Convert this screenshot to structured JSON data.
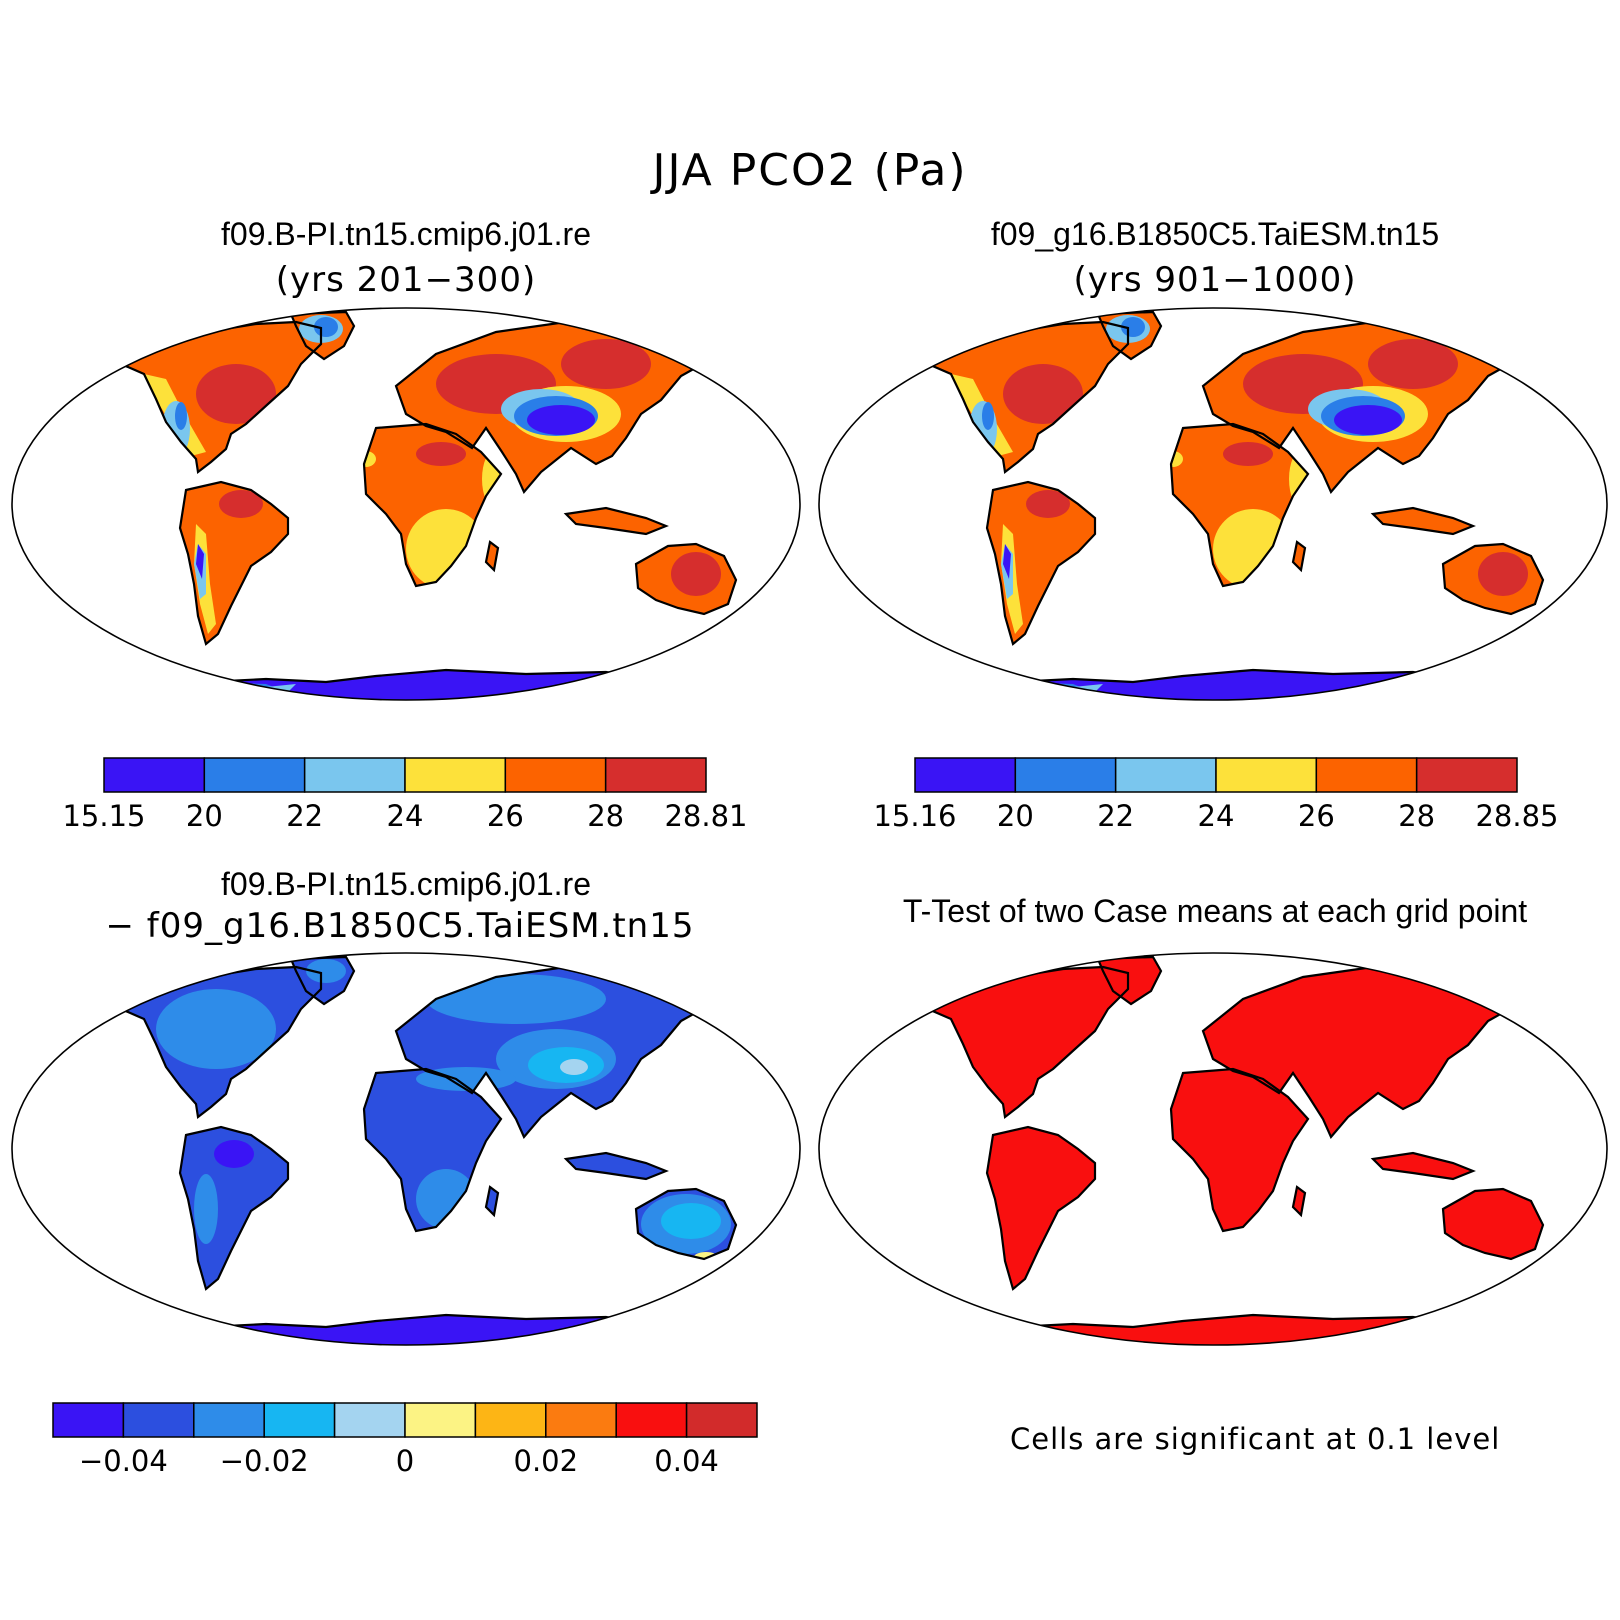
{
  "figure": {
    "title": "JJA PCO2 (Pa)"
  },
  "panels": {
    "case1": {
      "title": "f09.B-PI.tn15.cmip6.j01.re",
      "subtitle": "(yrs 201−300)",
      "colorbar": {
        "colors": [
          "#3a14f5",
          "#2a7ee8",
          "#7ac6ee",
          "#fde13a",
          "#fc6300",
          "#d62e2d"
        ],
        "labels": [
          "15.15",
          "20",
          "22",
          "24",
          "26",
          "28",
          "28.81"
        ]
      }
    },
    "case2": {
      "title": "f09_g16.B1850C5.TaiESM.tn15",
      "subtitle": "(yrs 901−1000)",
      "colorbar": {
        "colors": [
          "#3a14f5",
          "#2a7ee8",
          "#7ac6ee",
          "#fde13a",
          "#fc6300",
          "#d62e2d"
        ],
        "labels": [
          "15.16",
          "20",
          "22",
          "24",
          "26",
          "28",
          "28.85"
        ]
      }
    },
    "diff": {
      "title": "f09.B-PI.tn15.cmip6.j01.re",
      "subtitle": "− f09_g16.B1850C5.TaiESM.tn15",
      "colorbar": {
        "colors": [
          "#3a14f5",
          "#2c4fdf",
          "#2e8ce9",
          "#17b6f2",
          "#a4d4f0",
          "#fcf384",
          "#fdb515",
          "#fb7b10",
          "#f90f0f",
          "#d22b2b"
        ],
        "labels": [
          "−0.04",
          "−0.02",
          "0",
          "0.02",
          "0.04"
        ]
      }
    },
    "ttest": {
      "title": "T-Test of two Case means at each grid point",
      "note": "Cells are significant at 0.1 level",
      "fill_color": "#f90f0f"
    }
  }
}
